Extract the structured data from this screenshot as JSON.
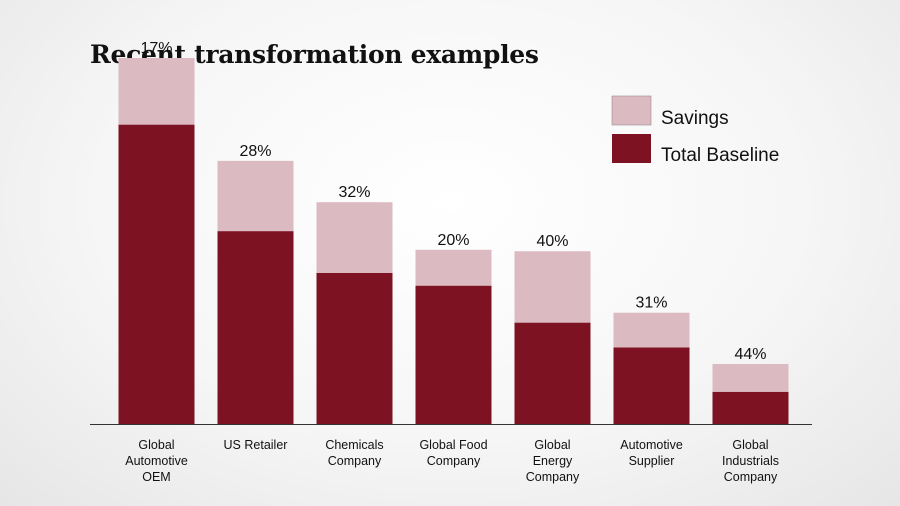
{
  "title": "Recent transformation examples",
  "colors": {
    "savings": "#DCBAC1",
    "baseline": "#7D1222",
    "axis": "#333333"
  },
  "chart_data": {
    "type": "bar",
    "stacked": true,
    "title": "Recent transformation examples",
    "xlabel": "",
    "ylabel": "",
    "ylim": [
      0,
      100
    ],
    "grid": false,
    "legend_position": "top-right",
    "legend": [
      "Savings",
      "Total Baseline"
    ],
    "categories": [
      [
        "Global",
        "Automotive",
        "OEM"
      ],
      [
        "US Retailer"
      ],
      [
        "Chemicals",
        "Company"
      ],
      [
        "Global Food",
        "Company"
      ],
      [
        "Global",
        "Energy",
        "Company"
      ],
      [
        "Automotive",
        "Supplier"
      ],
      [
        "Global",
        "Industrials",
        "Company"
      ]
    ],
    "series": [
      {
        "name": "Total Baseline",
        "values": [
          81.8,
          52.7,
          41.3,
          37.8,
          27.7,
          20.9,
          8.8
        ]
      },
      {
        "name": "Savings",
        "values": [
          18.2,
          19.2,
          19.3,
          9.8,
          19.5,
          9.5,
          7.6
        ]
      }
    ],
    "annotations": [
      "17%",
      "28%",
      "32%",
      "20%",
      "40%",
      "31%",
      "44%"
    ]
  }
}
